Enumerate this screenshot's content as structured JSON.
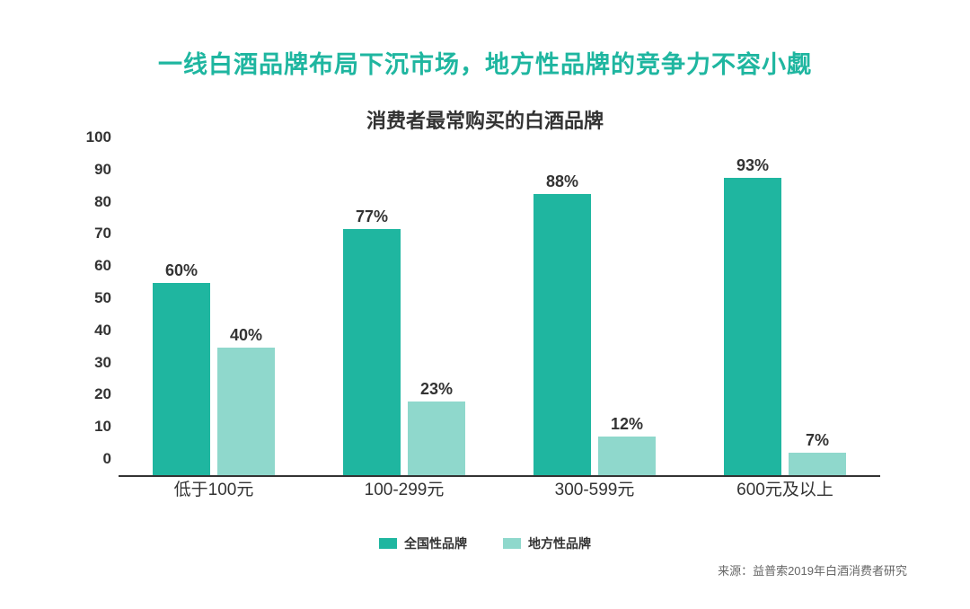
{
  "title": {
    "text": "一线白酒品牌布局下沉市场，地方性品牌的竞争力不容小觑",
    "color": "#1fb6a0",
    "fontsize": 27
  },
  "subtitle": {
    "text": "消费者最常购买的白酒品牌",
    "color": "#333333",
    "fontsize": 22
  },
  "chart": {
    "type": "bar-grouped",
    "ylim_min": 0,
    "ylim_max": 100,
    "ytick_step": 10,
    "yticks": [
      "0",
      "10",
      "20",
      "30",
      "40",
      "50",
      "60",
      "70",
      "80",
      "90",
      "100"
    ],
    "ytick_fontsize": 17,
    "ytick_color": "#333333",
    "axis_line_color": "#333333",
    "categories": [
      "低于100元",
      "100-299元",
      "300-599元",
      "600元及以上"
    ],
    "xlabel_fontsize": 19,
    "xlabel_color": "#333333",
    "series": [
      {
        "name": "全国性品牌",
        "color": "#1fb6a0",
        "values": [
          60,
          77,
          88,
          93
        ],
        "labels": [
          "60%",
          "77%",
          "88%",
          "93%"
        ]
      },
      {
        "name": "地方性品牌",
        "color": "#8fd8cc",
        "values": [
          40,
          23,
          12,
          7
        ],
        "labels": [
          "40%",
          "23%",
          "12%",
          "7%"
        ]
      }
    ],
    "bar_width_pct": 30,
    "bar_gap_pct": 4,
    "value_label_fontsize": 18,
    "value_label_color": "#333333"
  },
  "legend": {
    "items": [
      {
        "label": "全国性品牌",
        "color": "#1fb6a0"
      },
      {
        "label": "地方性品牌",
        "color": "#8fd8cc"
      }
    ],
    "fontsize": 14,
    "color": "#333333"
  },
  "source": {
    "text": "来源：益普索2019年白酒消费者研究",
    "fontsize": 13,
    "color": "#666666"
  },
  "background_color": "#ffffff"
}
